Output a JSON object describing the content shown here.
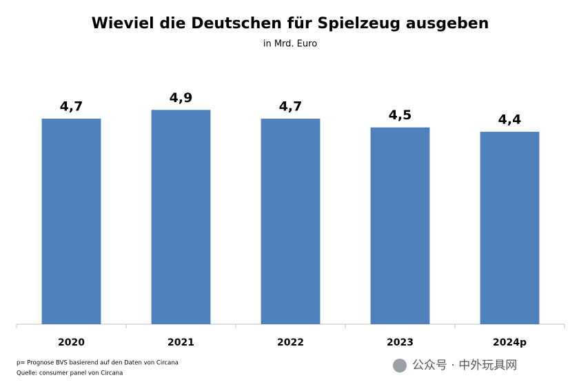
{
  "chart_data": {
    "type": "bar",
    "title": "Wieviel die Deutschen für Spielzeug ausgeben",
    "subtitle": "in Mrd. Euro",
    "categories": [
      "2020",
      "2021",
      "2022",
      "2023",
      "2024p"
    ],
    "values": [
      4.7,
      4.9,
      4.7,
      4.5,
      4.4
    ],
    "value_labels": [
      "4,7",
      "4,9",
      "4,7",
      "4,5",
      "4,4"
    ],
    "color": "#4f81bd",
    "ylim": [
      0,
      5
    ],
    "grid": false,
    "footnotes": [
      "p= Prognose BVS basierend auf den Daten von Circana",
      "Quelle: consumer panel von Circana"
    ],
    "watermark": "公众号 · 中外玩具网"
  }
}
